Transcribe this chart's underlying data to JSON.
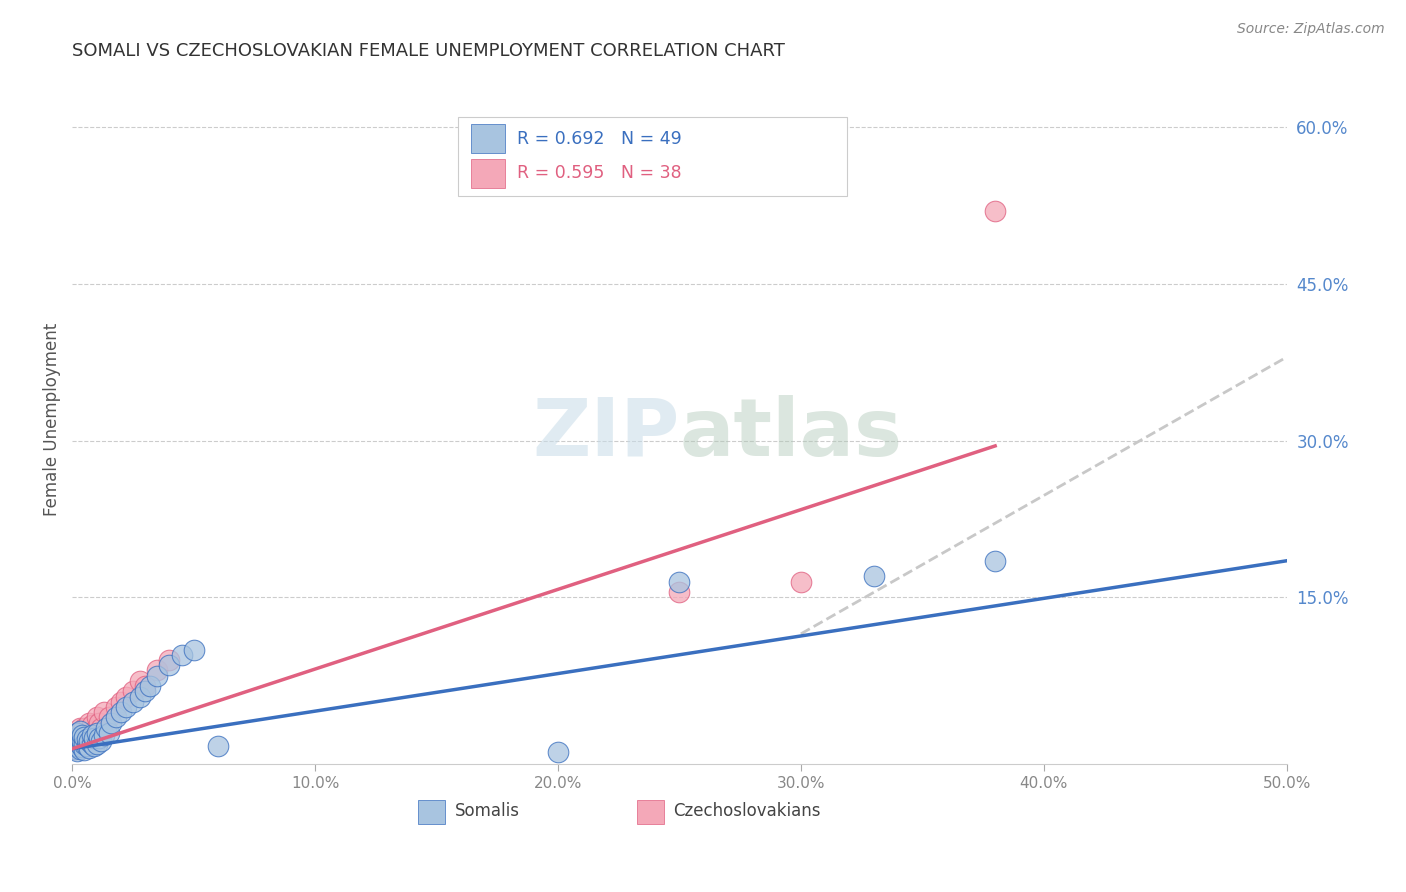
{
  "title": "SOMALI VS CZECHOSLOVAKIAN FEMALE UNEMPLOYMENT CORRELATION CHART",
  "source": "Source: ZipAtlas.com",
  "ylabel": "Female Unemployment",
  "right_yticks": [
    "60.0%",
    "45.0%",
    "30.0%",
    "15.0%"
  ],
  "right_ytick_vals": [
    0.6,
    0.45,
    0.3,
    0.15
  ],
  "xlim": [
    0.0,
    0.5
  ],
  "ylim": [
    -0.01,
    0.65
  ],
  "somali_color": "#a8c4e0",
  "czech_color": "#f4a8b8",
  "somali_line_color": "#3a6fbf",
  "czech_line_color": "#e06080",
  "dash_line_color": "#c8c8c8",
  "background_color": "#ffffff",
  "watermark_zip": "ZIP",
  "watermark_atlas": "atlas",
  "legend_label_somali": "Somalis",
  "legend_label_czech": "Czechoslovakians",
  "somali_scatter_x": [
    0.001,
    0.001,
    0.001,
    0.002,
    0.002,
    0.002,
    0.002,
    0.003,
    0.003,
    0.003,
    0.003,
    0.004,
    0.004,
    0.004,
    0.005,
    0.005,
    0.005,
    0.006,
    0.006,
    0.007,
    0.007,
    0.008,
    0.008,
    0.009,
    0.009,
    0.01,
    0.01,
    0.011,
    0.012,
    0.013,
    0.014,
    0.015,
    0.016,
    0.018,
    0.02,
    0.022,
    0.025,
    0.028,
    0.03,
    0.032,
    0.035,
    0.04,
    0.045,
    0.05,
    0.06,
    0.2,
    0.25,
    0.33,
    0.38
  ],
  "somali_scatter_y": [
    0.005,
    0.01,
    0.015,
    0.003,
    0.008,
    0.012,
    0.02,
    0.005,
    0.01,
    0.015,
    0.022,
    0.007,
    0.012,
    0.018,
    0.004,
    0.01,
    0.016,
    0.008,
    0.014,
    0.006,
    0.012,
    0.01,
    0.018,
    0.008,
    0.015,
    0.01,
    0.02,
    0.015,
    0.012,
    0.018,
    0.025,
    0.02,
    0.03,
    0.035,
    0.04,
    0.045,
    0.05,
    0.055,
    0.06,
    0.065,
    0.075,
    0.085,
    0.095,
    0.1,
    0.008,
    0.002,
    0.165,
    0.17,
    0.185
  ],
  "czech_scatter_x": [
    0.001,
    0.001,
    0.001,
    0.002,
    0.002,
    0.002,
    0.003,
    0.003,
    0.003,
    0.004,
    0.004,
    0.005,
    0.005,
    0.005,
    0.006,
    0.006,
    0.007,
    0.007,
    0.008,
    0.008,
    0.009,
    0.01,
    0.01,
    0.011,
    0.012,
    0.013,
    0.015,
    0.018,
    0.02,
    0.022,
    0.025,
    0.028,
    0.03,
    0.035,
    0.04,
    0.25,
    0.3,
    0.38
  ],
  "czech_scatter_y": [
    0.005,
    0.01,
    0.015,
    0.008,
    0.013,
    0.02,
    0.01,
    0.018,
    0.025,
    0.012,
    0.022,
    0.008,
    0.015,
    0.025,
    0.012,
    0.02,
    0.03,
    0.015,
    0.018,
    0.028,
    0.022,
    0.035,
    0.02,
    0.03,
    0.025,
    0.04,
    0.035,
    0.045,
    0.05,
    0.055,
    0.06,
    0.07,
    0.065,
    0.08,
    0.09,
    0.155,
    0.165,
    0.52
  ],
  "somali_line_x": [
    0.0,
    0.5
  ],
  "somali_line_y": [
    0.005,
    0.185
  ],
  "czech_line_x": [
    0.0,
    0.38
  ],
  "czech_line_y": [
    0.005,
    0.295
  ],
  "dash_line_x": [
    0.3,
    0.5
  ],
  "dash_line_y": [
    0.115,
    0.38
  ]
}
